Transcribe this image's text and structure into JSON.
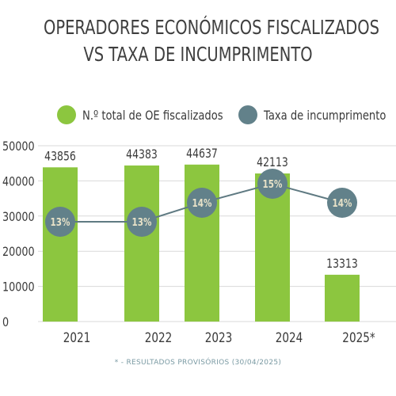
{
  "header": {
    "title_line1": "OPERADORES ECONÓMICOS FISCALIZADOS",
    "title_line2": "VS TAXA DE INCUMPRIMENTO"
  },
  "legend": {
    "bars_label": "N.º total de OE fiscalizados",
    "line_label": "Taxa de incumprimento"
  },
  "colors": {
    "bar": "#8cc63f",
    "line": "#5f7a82",
    "marker": "#62818a",
    "grid": "#d9d9d9",
    "marker_text": "#e8e2c8"
  },
  "footnote": "* - RESULTADOS PROVISÓRIOS (30/04/2025)",
  "chart_data": {
    "type": "bar",
    "categories": [
      "2021",
      "2022",
      "2023",
      "2024",
      "2025*"
    ],
    "series": [
      {
        "name": "N.º total de OE fiscalizados",
        "type": "bar",
        "values": [
          43856,
          44383,
          44637,
          42113,
          13313
        ],
        "labels": [
          "43856",
          "44383",
          "44637",
          "42113",
          "13313"
        ]
      },
      {
        "name": "Taxa de incumprimento",
        "type": "line",
        "values": [
          13,
          13,
          14,
          15,
          14
        ],
        "labels": [
          "13%",
          "13%",
          "14%",
          "15%",
          "14%"
        ]
      }
    ],
    "yticks": [
      "50000",
      "40000",
      "30000",
      "20000",
      "10000",
      "0"
    ],
    "ylim": [
      0,
      50000
    ],
    "grid": true,
    "legend_position": "top"
  }
}
